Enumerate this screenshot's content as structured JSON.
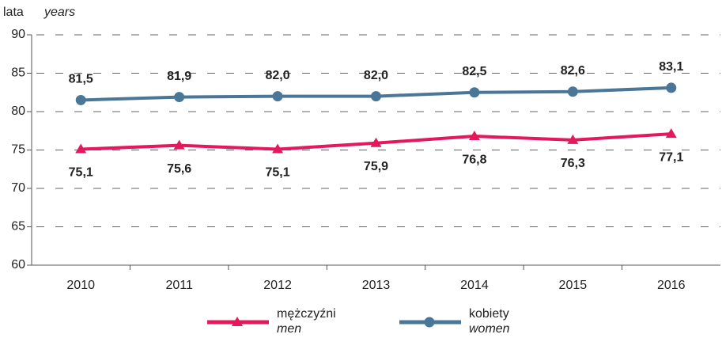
{
  "chart_data": {
    "type": "line",
    "y_label": "lata",
    "y_label_translation": "years",
    "categories": [
      "2010",
      "2011",
      "2012",
      "2013",
      "2014",
      "2015",
      "2016"
    ],
    "series": [
      {
        "name": "mężczyźni",
        "name_translation": "men",
        "color": "#e3195b",
        "marker": "triangle",
        "values": [
          75.1,
          75.6,
          75.1,
          75.9,
          76.8,
          76.3,
          77.1
        ],
        "value_labels": [
          "75,1",
          "75,6",
          "75,1",
          "75,9",
          "76,8",
          "76,3",
          "77,1"
        ]
      },
      {
        "name": "kobiety",
        "name_translation": "women",
        "color": "#4a7797",
        "marker": "circle",
        "values": [
          81.5,
          81.9,
          82.0,
          82.0,
          82.5,
          82.6,
          83.1
        ],
        "value_labels": [
          "81,5",
          "81,9",
          "82,0",
          "82,0",
          "82,5",
          "82,6",
          "83,1"
        ]
      }
    ],
    "ylim": [
      60,
      90
    ],
    "yticks": [
      60,
      65,
      70,
      75,
      80,
      85,
      90
    ],
    "grid": true
  }
}
